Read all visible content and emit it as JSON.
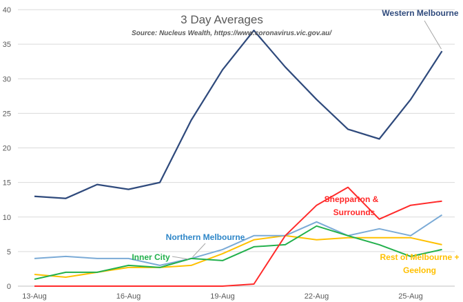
{
  "chart_data": {
    "type": "line",
    "title": "3 Day Averages",
    "subtitle": "Source: Nucleus Wealth, https://www.coronavirus.vic.gov.au/",
    "xlabel": "",
    "ylabel": "",
    "ylim": [
      0,
      40
    ],
    "yticks": [
      0,
      5,
      10,
      15,
      20,
      25,
      30,
      35,
      40
    ],
    "grid": "horizontal",
    "x": [
      "13-Aug",
      "14-Aug",
      "15-Aug",
      "16-Aug",
      "17-Aug",
      "18-Aug",
      "19-Aug",
      "20-Aug",
      "21-Aug",
      "22-Aug",
      "23-Aug",
      "24-Aug",
      "25-Aug",
      "26-Aug"
    ],
    "xtick_labels": [
      "13-Aug",
      "16-Aug",
      "19-Aug",
      "22-Aug",
      "25-Aug"
    ],
    "series": [
      {
        "name": "Western Melbourne",
        "color": "#2f4a7c",
        "values": [
          13.0,
          12.7,
          14.7,
          14.0,
          15.0,
          24.0,
          31.3,
          37.0,
          31.7,
          27.0,
          22.7,
          21.3,
          27.0,
          34.0
        ]
      },
      {
        "name": "Northern Melbourne",
        "color": "#7aaad6",
        "values": [
          4.0,
          4.3,
          4.0,
          4.0,
          3.0,
          4.0,
          5.3,
          7.3,
          7.3,
          9.3,
          7.3,
          8.3,
          7.3,
          10.3
        ]
      },
      {
        "name": "Inner City",
        "color": "#22b04c",
        "values": [
          1.0,
          2.0,
          2.0,
          3.0,
          2.7,
          4.0,
          3.7,
          5.7,
          6.0,
          8.7,
          7.3,
          6.0,
          4.3,
          5.3
        ]
      },
      {
        "name": "Shepparton & Surrounds",
        "color": "#ff2a2a",
        "values": [
          0,
          0,
          0,
          0,
          0,
          0,
          0,
          0.3,
          7.3,
          11.7,
          14.3,
          9.7,
          11.7,
          12.3
        ]
      },
      {
        "name": "Rest of Melbourne + Geelong",
        "color": "#ffc000",
        "values": [
          1.7,
          1.3,
          2.0,
          2.7,
          2.7,
          3.0,
          4.7,
          6.7,
          7.3,
          6.7,
          7.0,
          7.0,
          7.0,
          6.0
        ]
      }
    ],
    "labels": {
      "western": "Western Melbourne",
      "northern": "Northern Melbourne",
      "inner": "Inner City",
      "shepparton_1": "Shepparton &",
      "shepparton_2": "Surrounds",
      "rest_1": "Rest of Melbourne +",
      "rest_2": "Geelong"
    }
  }
}
